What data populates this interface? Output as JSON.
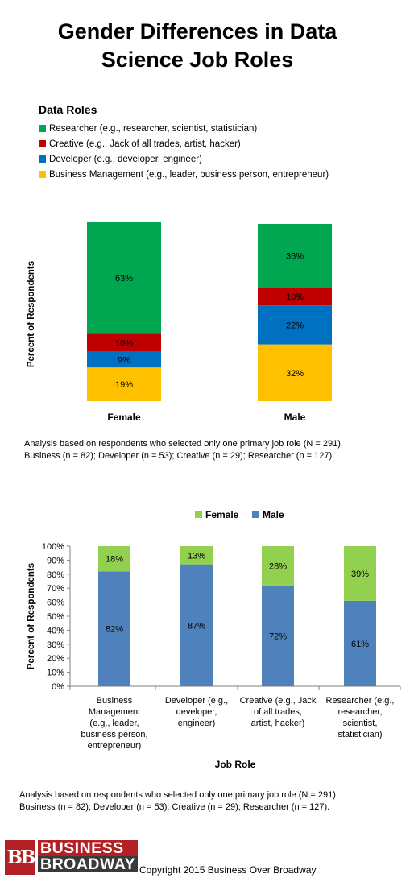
{
  "title": "Gender Differences in Data Science Job Roles",
  "title_lines": [
    "Gender Differences in Data",
    "Science Job Roles"
  ],
  "chart_data": [
    {
      "type": "bar",
      "stacked": true,
      "title": "",
      "legend_title": "Data Roles",
      "ylabel": "Percent of Respondents",
      "xlabel": "",
      "ylim": [
        0,
        100
      ],
      "categories": [
        "Female",
        "Male"
      ],
      "series": [
        {
          "name": "Business Management (e.g., leader, business person, entrepreneur)",
          "values": [
            19,
            32
          ],
          "color": "#ffc000"
        },
        {
          "name": "Developer (e.g., developer, engineer)",
          "values": [
            9,
            22
          ],
          "color": "#0070c0"
        },
        {
          "name": "Creative (e.g., Jack of all trades, artist, hacker)",
          "values": [
            10,
            10
          ],
          "color": "#c00000"
        },
        {
          "name": "Researcher (e.g., researcher, scientist, statistician)",
          "values": [
            63,
            36
          ],
          "color": "#00a650"
        }
      ],
      "data_labels": [
        "19%",
        "9%",
        "10%",
        "63%",
        "32%",
        "22%",
        "10%",
        "36%"
      ],
      "grid": false,
      "legend_position": "top-left"
    },
    {
      "type": "bar",
      "stacked": true,
      "title": "",
      "xlabel": "Job Role",
      "ylabel": "Percent of Respondents",
      "ylim": [
        0,
        100
      ],
      "yticks": [
        "0%",
        "10%",
        "20%",
        "30%",
        "40%",
        "50%",
        "60%",
        "70%",
        "80%",
        "90%",
        "100%"
      ],
      "categories": [
        "Business Management (e.g., leader, business person, entrepreneur)",
        "Developer (e.g., developer, engineer)",
        "Creative (e.g., Jack of all trades, artist, hacker)",
        "Researcher (e.g., researcher, scientist, statistician)"
      ],
      "category_lines": [
        [
          "Business",
          "Management",
          "(e.g., leader,",
          "business person,",
          "entrepreneur)"
        ],
        [
          "Developer (e.g.,",
          "developer,",
          "engineer)"
        ],
        [
          "Creative (e.g., Jack",
          "of all trades,",
          "artist, hacker)"
        ],
        [
          "Researcher (e.g.,",
          "researcher,",
          "scientist,",
          "statistician)"
        ]
      ],
      "series": [
        {
          "name": "Male",
          "values": [
            82,
            87,
            72,
            61
          ],
          "labels": [
            "82%",
            "87%",
            "72%",
            "61%"
          ],
          "color": "#4f81bd"
        },
        {
          "name": "Female",
          "values": [
            18,
            13,
            28,
            39
          ],
          "labels": [
            "18%",
            "13%",
            "28%",
            "39%"
          ],
          "color": "#92d050"
        }
      ],
      "grid": false,
      "legend_position": "top"
    }
  ],
  "legend_top": {
    "title": "Data Roles",
    "items": [
      {
        "label": "Researcher (e.g., researcher, scientist, statistician)",
        "color": "#00a650"
      },
      {
        "label": "Creative (e.g., Jack of all trades, artist, hacker)",
        "color": "#c00000"
      },
      {
        "label": "Developer (e.g., developer, engineer)",
        "color": "#0070c0"
      },
      {
        "label": "Business Management (e.g., leader, business person, entrepreneur)",
        "color": "#ffc000"
      }
    ]
  },
  "legend_bottom": {
    "items": [
      {
        "label": "Female",
        "color": "#92d050"
      },
      {
        "label": "Male",
        "color": "#4f81bd"
      }
    ]
  },
  "notes": {
    "line1": "Analysis based on respondents who selected only one primary job role (N = 291).",
    "line2": "Business (n = 82); Developer (n = 53); Creative (n = 29); Researcher (n = 127)."
  },
  "logo": {
    "mark": "BB",
    "line1": "BUSINESS",
    "line2": "BROADWAY"
  },
  "copyright": "Copyright 2015 Business Over Broadway"
}
